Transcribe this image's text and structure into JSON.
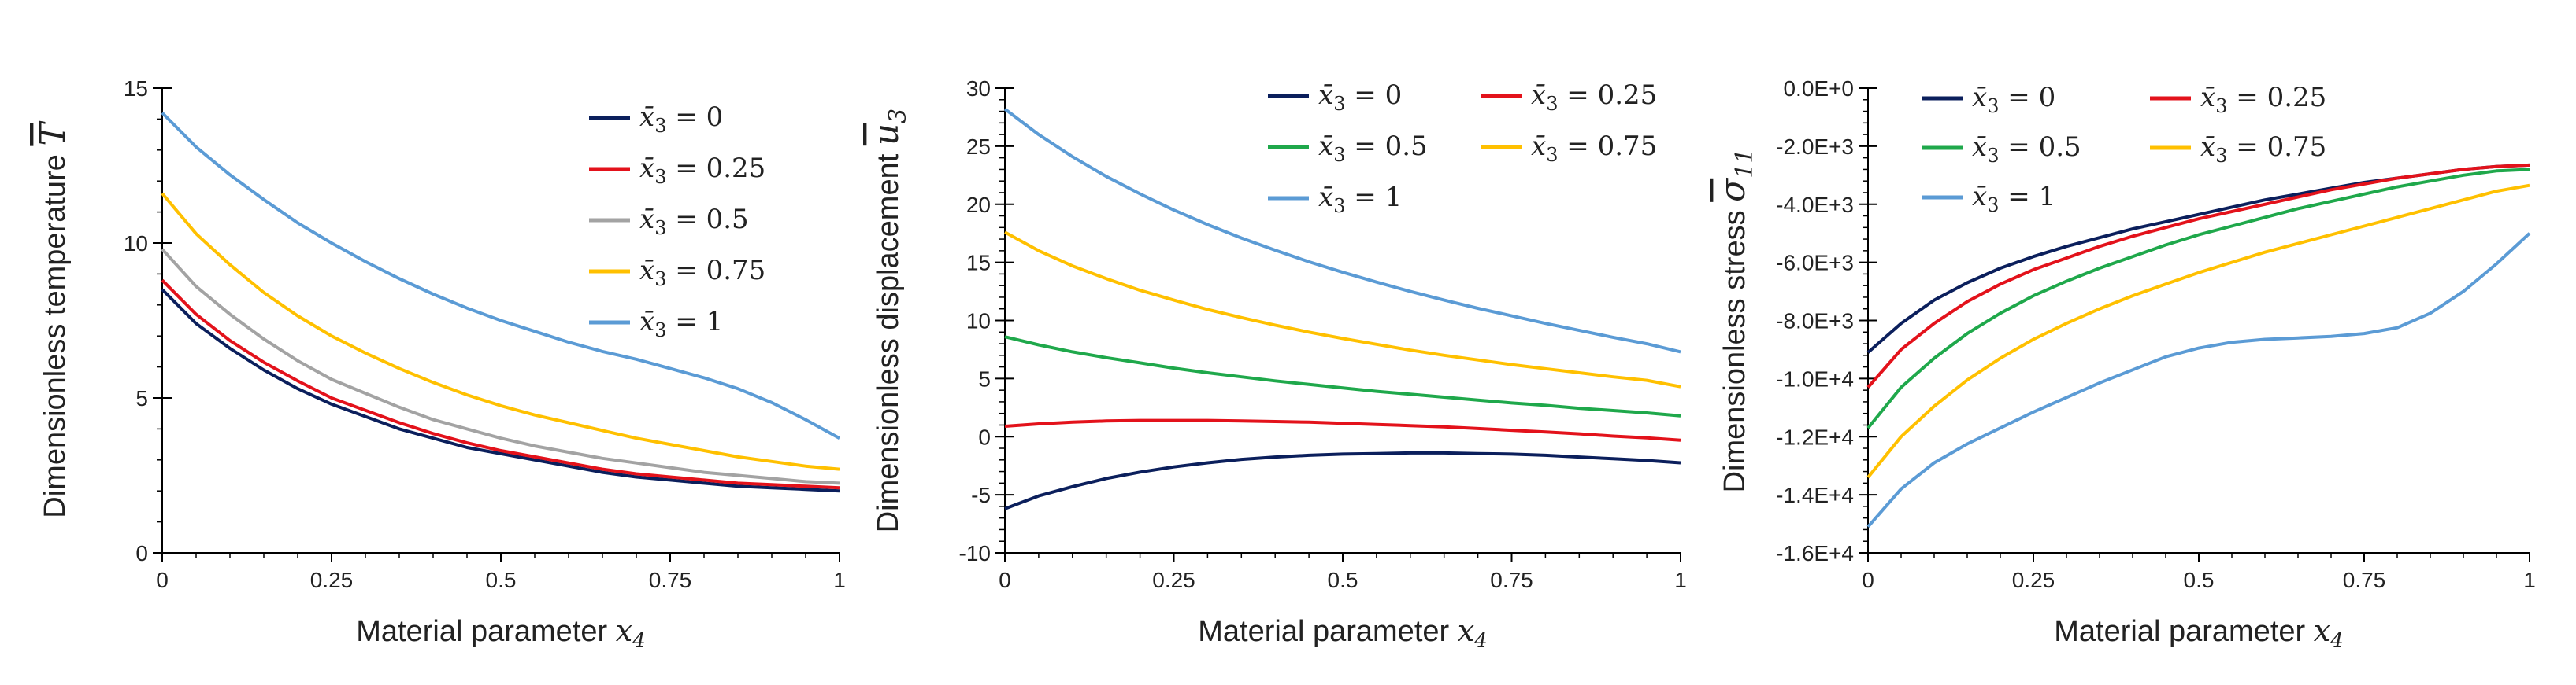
{
  "chart_data": [
    {
      "type": "line",
      "id": "temperature",
      "xlabel_text": "Material parameter ",
      "xlabel_var": "x",
      "xlabel_sub": "4",
      "ylabel_text": "Dimensionless temperature ",
      "ylabel_var": "T",
      "ylabel_sub": "",
      "xlim": [
        0,
        1
      ],
      "ylim": [
        0,
        15
      ],
      "x_ticks": [
        0,
        0.25,
        0.5,
        0.75,
        1
      ],
      "x_tick_labels": [
        "0",
        "0.25",
        "0.5",
        "0.75",
        "1"
      ],
      "y_ticks": [
        0,
        5,
        10,
        15
      ],
      "y_tick_labels": [
        "0",
        "5",
        "10",
        "15"
      ],
      "legend_columns": 1,
      "legend_position": "top-right",
      "series": [
        {
          "name": "x̄₃ = 0",
          "label_prefix": "x̄",
          "label_sub": "3",
          "label_value": " = 0",
          "color": "#0b1f5c",
          "x": [
            0,
            0.05,
            0.1,
            0.15,
            0.2,
            0.25,
            0.3,
            0.35,
            0.4,
            0.45,
            0.5,
            0.55,
            0.6,
            0.65,
            0.7,
            0.75,
            0.8,
            0.85,
            0.9,
            0.95,
            1
          ],
          "values": [
            8.5,
            7.4,
            6.6,
            5.9,
            5.3,
            4.8,
            4.4,
            4.0,
            3.7,
            3.4,
            3.2,
            3.0,
            2.8,
            2.6,
            2.45,
            2.35,
            2.25,
            2.15,
            2.1,
            2.05,
            2.0
          ]
        },
        {
          "name": "x̄₃ = 0.25",
          "label_prefix": "x̄",
          "label_sub": "3",
          "label_value": " = 0.25",
          "color": "#e3121b",
          "x": [
            0,
            0.05,
            0.1,
            0.15,
            0.2,
            0.25,
            0.3,
            0.35,
            0.4,
            0.45,
            0.5,
            0.55,
            0.6,
            0.65,
            0.7,
            0.75,
            0.8,
            0.85,
            0.9,
            0.95,
            1
          ],
          "values": [
            8.8,
            7.7,
            6.85,
            6.15,
            5.55,
            5.0,
            4.6,
            4.2,
            3.85,
            3.55,
            3.3,
            3.1,
            2.9,
            2.7,
            2.55,
            2.45,
            2.35,
            2.25,
            2.2,
            2.15,
            2.1
          ]
        },
        {
          "name": "x̄₃ = 0.5",
          "label_prefix": "x̄",
          "label_sub": "3",
          "label_value": " = 0.5",
          "color": "#a3a3a3",
          "x": [
            0,
            0.05,
            0.1,
            0.15,
            0.2,
            0.25,
            0.3,
            0.35,
            0.4,
            0.45,
            0.5,
            0.55,
            0.6,
            0.65,
            0.7,
            0.75,
            0.8,
            0.85,
            0.9,
            0.95,
            1
          ],
          "values": [
            9.8,
            8.6,
            7.7,
            6.9,
            6.2,
            5.6,
            5.15,
            4.7,
            4.3,
            4.0,
            3.7,
            3.45,
            3.25,
            3.05,
            2.9,
            2.75,
            2.6,
            2.5,
            2.4,
            2.3,
            2.25
          ]
        },
        {
          "name": "x̄₃ = 0.75",
          "label_prefix": "x̄",
          "label_sub": "3",
          "label_value": " = 0.75",
          "color": "#ffc000",
          "x": [
            0,
            0.05,
            0.1,
            0.15,
            0.2,
            0.25,
            0.3,
            0.35,
            0.4,
            0.45,
            0.5,
            0.55,
            0.6,
            0.65,
            0.7,
            0.75,
            0.8,
            0.85,
            0.9,
            0.95,
            1
          ],
          "values": [
            11.6,
            10.3,
            9.3,
            8.4,
            7.65,
            7.0,
            6.45,
            5.95,
            5.5,
            5.1,
            4.75,
            4.45,
            4.2,
            3.95,
            3.7,
            3.5,
            3.3,
            3.1,
            2.95,
            2.8,
            2.7
          ]
        },
        {
          "name": "x̄₃ = 1",
          "label_prefix": "x̄",
          "label_sub": "3",
          "label_value": " = 1",
          "color": "#5b9bd5",
          "x": [
            0,
            0.05,
            0.1,
            0.15,
            0.2,
            0.25,
            0.3,
            0.35,
            0.4,
            0.45,
            0.5,
            0.55,
            0.6,
            0.65,
            0.7,
            0.75,
            0.8,
            0.85,
            0.9,
            0.95,
            1
          ],
          "values": [
            14.2,
            13.1,
            12.2,
            11.4,
            10.65,
            10.0,
            9.4,
            8.85,
            8.35,
            7.9,
            7.5,
            7.15,
            6.8,
            6.5,
            6.25,
            5.95,
            5.65,
            5.3,
            4.85,
            4.3,
            3.7
          ]
        }
      ]
    },
    {
      "type": "line",
      "id": "displacement",
      "xlabel_text": "Material parameter ",
      "xlabel_var": "x",
      "xlabel_sub": "4",
      "ylabel_text": "Dimensionless displacement ",
      "ylabel_var": "u",
      "ylabel_sub": "3",
      "xlim": [
        0,
        1
      ],
      "ylim": [
        -10,
        30
      ],
      "x_ticks": [
        0,
        0.25,
        0.5,
        0.75,
        1
      ],
      "x_tick_labels": [
        "0",
        "0.25",
        "0.5",
        "0.75",
        "1"
      ],
      "y_ticks": [
        -10,
        -5,
        0,
        5,
        10,
        15,
        20,
        25,
        30
      ],
      "y_tick_labels": [
        "-10",
        "-5",
        "0",
        "5",
        "10",
        "15",
        "20",
        "25",
        "30"
      ],
      "legend_columns": 2,
      "legend_position": "top-right",
      "series": [
        {
          "name": "x̄₃ = 0",
          "label_prefix": "x̄",
          "label_sub": "3",
          "label_value": " = 0",
          "color": "#0b1f5c",
          "x": [
            0,
            0.05,
            0.1,
            0.15,
            0.2,
            0.25,
            0.3,
            0.35,
            0.4,
            0.45,
            0.5,
            0.55,
            0.6,
            0.65,
            0.7,
            0.75,
            0.8,
            0.85,
            0.9,
            0.95,
            1
          ],
          "values": [
            -6.2,
            -5.1,
            -4.3,
            -3.6,
            -3.05,
            -2.6,
            -2.25,
            -1.95,
            -1.75,
            -1.6,
            -1.5,
            -1.45,
            -1.4,
            -1.4,
            -1.45,
            -1.5,
            -1.6,
            -1.75,
            -1.9,
            -2.05,
            -2.25
          ]
        },
        {
          "name": "x̄₃ = 0.25",
          "label_prefix": "x̄",
          "label_sub": "3",
          "label_value": " = 0.25",
          "color": "#e3121b",
          "x": [
            0,
            0.05,
            0.1,
            0.15,
            0.2,
            0.25,
            0.3,
            0.35,
            0.4,
            0.45,
            0.5,
            0.55,
            0.6,
            0.65,
            0.7,
            0.75,
            0.8,
            0.85,
            0.9,
            0.95,
            1
          ],
          "values": [
            0.9,
            1.1,
            1.25,
            1.35,
            1.4,
            1.4,
            1.4,
            1.35,
            1.3,
            1.25,
            1.15,
            1.05,
            0.95,
            0.85,
            0.7,
            0.55,
            0.4,
            0.25,
            0.05,
            -0.1,
            -0.3
          ]
        },
        {
          "name": "x̄₃ = 0.5",
          "label_prefix": "x̄",
          "label_sub": "3",
          "label_value": " = 0.5",
          "color": "#1fa84b",
          "x": [
            0,
            0.05,
            0.1,
            0.15,
            0.2,
            0.25,
            0.3,
            0.35,
            0.4,
            0.45,
            0.5,
            0.55,
            0.6,
            0.65,
            0.7,
            0.75,
            0.8,
            0.85,
            0.9,
            0.95,
            1
          ],
          "values": [
            8.6,
            7.9,
            7.3,
            6.8,
            6.35,
            5.9,
            5.5,
            5.15,
            4.8,
            4.5,
            4.2,
            3.9,
            3.65,
            3.4,
            3.15,
            2.9,
            2.7,
            2.45,
            2.25,
            2.05,
            1.8
          ]
        },
        {
          "name": "x̄₃ = 0.75",
          "label_prefix": "x̄",
          "label_sub": "3",
          "label_value": " = 0.75",
          "color": "#ffc000",
          "x": [
            0,
            0.05,
            0.1,
            0.15,
            0.2,
            0.25,
            0.3,
            0.35,
            0.4,
            0.45,
            0.5,
            0.55,
            0.6,
            0.65,
            0.7,
            0.75,
            0.8,
            0.85,
            0.9,
            0.95,
            1
          ],
          "values": [
            17.6,
            16.0,
            14.7,
            13.6,
            12.6,
            11.75,
            10.95,
            10.25,
            9.6,
            9.0,
            8.45,
            7.95,
            7.45,
            7.0,
            6.6,
            6.2,
            5.85,
            5.5,
            5.15,
            4.85,
            4.3
          ]
        },
        {
          "name": "x̄₃ = 1",
          "label_prefix": "x̄",
          "label_sub": "3",
          "label_value": " = 1",
          "color": "#5b9bd5",
          "x": [
            0,
            0.05,
            0.1,
            0.15,
            0.2,
            0.25,
            0.3,
            0.35,
            0.4,
            0.45,
            0.5,
            0.55,
            0.6,
            0.65,
            0.7,
            0.75,
            0.8,
            0.85,
            0.9,
            0.95,
            1
          ],
          "values": [
            28.2,
            26.0,
            24.1,
            22.4,
            20.9,
            19.5,
            18.25,
            17.1,
            16.05,
            15.05,
            14.15,
            13.3,
            12.5,
            11.75,
            11.05,
            10.4,
            9.75,
            9.15,
            8.55,
            8.0,
            7.3
          ]
        }
      ]
    },
    {
      "type": "line",
      "id": "stress",
      "xlabel_text": "Material parameter ",
      "xlabel_var": "x",
      "xlabel_sub": "4",
      "ylabel_text": "Dimensionless stress ",
      "ylabel_var": "σ",
      "ylabel_sub": "11",
      "xlim": [
        0,
        1
      ],
      "ylim": [
        -16000,
        0
      ],
      "x_ticks": [
        0,
        0.25,
        0.5,
        0.75,
        1
      ],
      "x_tick_labels": [
        "0",
        "0.25",
        "0.5",
        "0.75",
        "1"
      ],
      "y_ticks": [
        0,
        -2000,
        -4000,
        -6000,
        -8000,
        -10000,
        -12000,
        -14000,
        -16000
      ],
      "y_tick_labels": [
        "0.0E+0",
        "-2.0E+3",
        "-4.0E+3",
        "-6.0E+3",
        "-8.0E+3",
        "-1.0E+4",
        "-1.2E+4",
        "-1.4E+4",
        "-1.6E+4"
      ],
      "legend_columns": 2,
      "legend_position": "top-left",
      "series": [
        {
          "name": "x̄₃ = 0",
          "label_prefix": "x̄",
          "label_sub": "3",
          "label_value": " = 0",
          "color": "#0b1f5c",
          "x": [
            0,
            0.05,
            0.1,
            0.15,
            0.2,
            0.25,
            0.3,
            0.35,
            0.4,
            0.45,
            0.5,
            0.55,
            0.6,
            0.65,
            0.7,
            0.75,
            0.8,
            0.85,
            0.9,
            0.95,
            1
          ],
          "values": [
            -9100,
            -8100,
            -7300,
            -6700,
            -6200,
            -5800,
            -5450,
            -5150,
            -4850,
            -4600,
            -4350,
            -4100,
            -3850,
            -3650,
            -3450,
            -3250,
            -3100,
            -2950,
            -2800,
            -2700,
            -2650
          ]
        },
        {
          "name": "x̄₃ = 0.25",
          "label_prefix": "x̄",
          "label_sub": "3",
          "label_value": " = 0.25",
          "color": "#e3121b",
          "x": [
            0,
            0.05,
            0.1,
            0.15,
            0.2,
            0.25,
            0.3,
            0.35,
            0.4,
            0.45,
            0.5,
            0.55,
            0.6,
            0.65,
            0.7,
            0.75,
            0.8,
            0.85,
            0.9,
            0.95,
            1
          ],
          "values": [
            -10300,
            -9000,
            -8100,
            -7350,
            -6750,
            -6250,
            -5850,
            -5450,
            -5100,
            -4800,
            -4500,
            -4250,
            -4000,
            -3750,
            -3500,
            -3300,
            -3100,
            -2950,
            -2800,
            -2700,
            -2650
          ]
        },
        {
          "name": "x̄₃ = 0.5",
          "label_prefix": "x̄",
          "label_sub": "3",
          "label_value": " = 0.5",
          "color": "#1fa84b",
          "x": [
            0,
            0.05,
            0.1,
            0.15,
            0.2,
            0.25,
            0.3,
            0.35,
            0.4,
            0.45,
            0.5,
            0.55,
            0.6,
            0.65,
            0.7,
            0.75,
            0.8,
            0.85,
            0.9,
            0.95,
            1
          ],
          "values": [
            -11700,
            -10300,
            -9300,
            -8450,
            -7750,
            -7150,
            -6650,
            -6200,
            -5800,
            -5400,
            -5050,
            -4750,
            -4450,
            -4150,
            -3900,
            -3650,
            -3400,
            -3200,
            -3000,
            -2850,
            -2800
          ]
        },
        {
          "name": "x̄₃ = 0.75",
          "label_prefix": "x̄",
          "label_sub": "3",
          "label_value": " = 0.75",
          "color": "#ffc000",
          "x": [
            0,
            0.05,
            0.1,
            0.15,
            0.2,
            0.25,
            0.3,
            0.35,
            0.4,
            0.45,
            0.5,
            0.55,
            0.6,
            0.65,
            0.7,
            0.75,
            0.8,
            0.85,
            0.9,
            0.95,
            1
          ],
          "values": [
            -13400,
            -12000,
            -10950,
            -10050,
            -9300,
            -8650,
            -8100,
            -7600,
            -7150,
            -6750,
            -6350,
            -6000,
            -5650,
            -5350,
            -5050,
            -4750,
            -4450,
            -4150,
            -3850,
            -3550,
            -3350
          ]
        },
        {
          "name": "x̄₃ = 1",
          "label_prefix": "x̄",
          "label_sub": "3",
          "label_value": " = 1",
          "color": "#5b9bd5",
          "x": [
            0,
            0.05,
            0.1,
            0.15,
            0.2,
            0.25,
            0.3,
            0.35,
            0.4,
            0.45,
            0.5,
            0.55,
            0.6,
            0.65,
            0.7,
            0.75,
            0.8,
            0.85,
            0.9,
            0.95,
            1
          ],
          "values": [
            -15100,
            -13800,
            -12900,
            -12250,
            -11700,
            -11150,
            -10650,
            -10150,
            -9700,
            -9250,
            -8950,
            -8750,
            -8650,
            -8600,
            -8550,
            -8450,
            -8250,
            -7750,
            -7000,
            -6050,
            -5000
          ]
        }
      ]
    }
  ]
}
